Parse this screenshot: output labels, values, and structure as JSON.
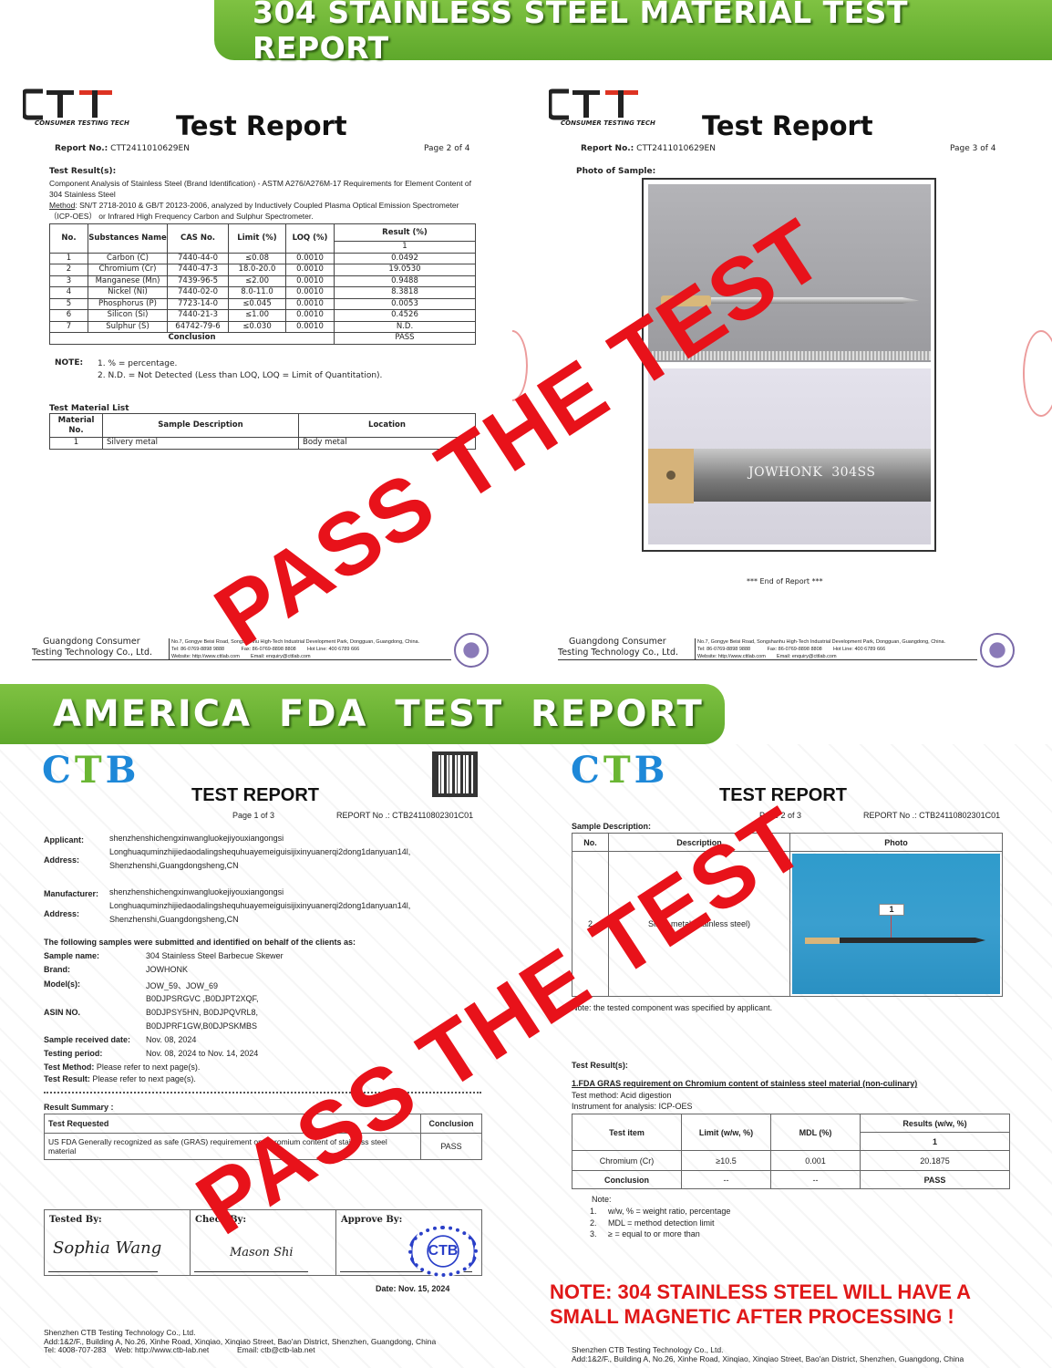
{
  "banners": {
    "top": "304 STAINLESS STEEL MATERIAL TEST REPORT",
    "middle": "AMERICA  FDA  TEST  REPORT"
  },
  "stamp_text": "PASS THE TEST",
  "stamp_color": "#e8121a",
  "brand_green": "#6ab633",
  "ctt_page2": {
    "logo": "CTT",
    "logo_sub": "CONSUMER TESTING TECH",
    "title": "Test Report",
    "report_no_label": "Report No.:",
    "report_no": "CTT2411010629EN",
    "page": "Page 2 of 4",
    "results_heading": "Test Result(s):",
    "description": "Component Analysis of Stainless Steel (Brand Identification) - ASTM A276/A276M-17 Requirements for Element Content of 304 Stainless Steel",
    "method_label": "Method",
    "method": ": SN/T 2718-2010 & GB/T 20123-2006, analyzed by Inductively Coupled Plasma Optical Emission Spectrometer（ICP-OES） or Infrared High Frequency Carbon and Sulphur Spectrometer.",
    "table": {
      "headers": [
        "No.",
        "Substances Name",
        "CAS No.",
        "Limit (%)",
        "LOQ (%)",
        "Result (%)"
      ],
      "result_sub": "1",
      "rows": [
        [
          "1",
          "Carbon (C)",
          "7440-44-0",
          "≤0.08",
          "0.0010",
          "0.0492"
        ],
        [
          "2",
          "Chromium (Cr)",
          "7440-47-3",
          "18.0-20.0",
          "0.0010",
          "19.0530"
        ],
        [
          "3",
          "Manganese (Mn)",
          "7439-96-5",
          "≤2.00",
          "0.0010",
          "0.9488"
        ],
        [
          "4",
          "Nickel (Ni)",
          "7440-02-0",
          "8.0-11.0",
          "0.0010",
          "8.3818"
        ],
        [
          "5",
          "Phosphorus (P)",
          "7723-14-0",
          "≤0.045",
          "0.0010",
          "0.0053"
        ],
        [
          "6",
          "Silicon (Si)",
          "7440-21-3",
          "≤1.00",
          "0.0010",
          "0.4526"
        ],
        [
          "7",
          "Sulphur (S)",
          "64742-79-6",
          "≤0.030",
          "0.0010",
          "N.D."
        ]
      ],
      "conclusion_label": "Conclusion",
      "conclusion": "PASS"
    },
    "note_label": "NOTE:",
    "notes": [
      "1. % = percentage.",
      "2. N.D. = Not Detected (Less than LOQ, LOQ = Limit of Quantitation)."
    ],
    "material_list_heading": "Test Material List",
    "material_table": {
      "headers": [
        "Material No.",
        "Sample Description",
        "Location"
      ],
      "rows": [
        [
          "1",
          "Silvery metal",
          "Body metal"
        ]
      ]
    }
  },
  "ctt_page3": {
    "logo": "CTT",
    "logo_sub": "CONSUMER TESTING TECH",
    "title": "Test Report",
    "report_no_label": "Report No.:",
    "report_no": "CTT2411010629EN",
    "page": "Page 3 of 4",
    "photo_heading": "Photo of Sample:",
    "engraving": "JOWHONK  304SS",
    "end": "*** End of Report ***"
  },
  "ctt_footer": {
    "company_line1": "Guangdong Consumer",
    "company_line2": "Testing Technology Co., Ltd.",
    "address": "No.7, Gongye Beisi Road, Songshanhu High-Tech Industrial Development Park, Dongguan, Guangdong, China.",
    "tel": "Tel: 86-0769-8898 9888",
    "fax": "Fax: 86-0769-8898 8808",
    "hotline": "Hot Line: 400 6789 666",
    "website": "Website: http://www.cttlab.com",
    "email": "Email: enquiry@cttlab.com"
  },
  "ctb_page1": {
    "logo": [
      "C",
      "T",
      "B"
    ],
    "logo_colors": [
      "#1e88d8",
      "#6ab633",
      "#1e88d8"
    ],
    "title": "TEST REPORT",
    "page": "Page 1 of 3",
    "report_no": "REPORT No .: CTB24110802301C01",
    "applicant_label": "Applicant:",
    "applicant": "shenzhenshichengxinwangluokejiyouxiangongsi",
    "address_label": "Address:",
    "address_line1": "Longhuaquminzhijiedaodalingshequhuayemeiguisijixinyuanerqi2dong1danyuan14l,",
    "address_line2": "Shenzhenshi,Guangdongsheng,CN",
    "manufacturer_label": "Manufacturer:",
    "manufacturer": "shenzhenshichengxinwangluokejiyouxiangongsi",
    "samples_intro": "The following samples were submitted and identified on behalf of the clients as:",
    "sample_name_label": "Sample name:",
    "sample_name": "304 Stainless Steel Barbecue Skewer",
    "brand_label": "Brand:",
    "brand": "JOWHONK",
    "models_label": "Model(s):",
    "models": "JOW_59、JOW_69",
    "asin_label": "ASIN NO.",
    "asin_lines": [
      "B0DJPSRGVC ,B0DJPT2XQF,",
      "B0DJPSY5HN, B0DJPQVRL8,",
      "B0DJPRF1GW,B0DJPSKMBS"
    ],
    "received_label": "Sample received date:",
    "received": "Nov. 08, 2024",
    "period_label": "Testing period:",
    "period": "Nov. 08, 2024 to Nov. 14, 2024",
    "method_label": "Test Method:",
    "method": "Please refer to next page(s).",
    "result_label": "Test Result:",
    "result": "Please refer to next page(s).",
    "summary_heading": "Result Summary :",
    "summary_headers": [
      "Test Requested",
      "Conclusion"
    ],
    "summary_row": [
      "US FDA Generally recognized as safe (GRAS) requirement on Chromium content of stainless steel material",
      "PASS"
    ],
    "sign_labels": [
      "Tested By:",
      "Check By:",
      "Approve By:"
    ],
    "signatures": [
      "Sophia Wang",
      "Mason Shi"
    ],
    "seal_text": "CTB TESTING TECHNOLOGY INTERNATIONAL",
    "seal_center": "CTB",
    "date": "Date: Nov. 15, 2024"
  },
  "ctb_page2": {
    "logo": [
      "C",
      "T",
      "B"
    ],
    "title": "TEST REPORT",
    "page": "Page 2 of 3",
    "report_no": "REPORT No .: CTB24110802301C01",
    "sample_desc_heading": "Sample Description:",
    "sample_headers": [
      "No.",
      "Description",
      "Photo"
    ],
    "sample_row": [
      "2",
      "Silver metal (stainless steel)"
    ],
    "photo_callout": "1",
    "sample_note": "Note: the tested component was specified by applicant.",
    "results_heading": "Test Result(s):",
    "test_title": "1.FDA GRAS requirement on Chromium content of stainless steel material (non-culinary)",
    "test_method": "Test method: Acid digestion",
    "instrument": "Instrument for analysis: ICP-OES",
    "table": {
      "headers": [
        "Test item",
        "Limit (w/w, %)",
        "MDL (%)",
        "Results (w/w, %)"
      ],
      "result_sub": "1",
      "rows": [
        [
          "Chromium (Cr)",
          "≥10.5",
          "0.001",
          "20.1875"
        ],
        [
          "Conclusion",
          "--",
          "--",
          "PASS"
        ]
      ]
    },
    "note_label": "Note:",
    "notes": [
      "1.     w/w, % = weight ratio, percentage",
      "2.     MDL = method detection limit",
      "3.     ≥ = equal to or more than"
    ],
    "red_note": [
      "NOTE: 304 STAINLESS STEEL WILL HAVE A",
      "SMALL MAGNETIC AFTER PROCESSING !"
    ]
  },
  "ctb_footer": {
    "company": "Shenzhen CTB Testing Technology Co., Ltd.",
    "address": "Add:1&2/F., Building A, No.26, Xinhe Road, Xinqiao, Xinqiao Street, Bao'an District, Shenzhen, Guangdong, China",
    "tel": "Tel: 4008-707-283",
    "web": "Web: http://www.ctb-lab.net",
    "email": "Email: ctb@ctb-lab.net"
  }
}
